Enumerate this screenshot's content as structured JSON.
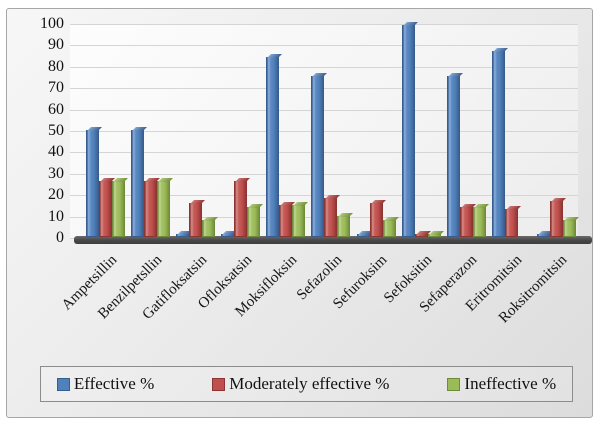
{
  "chart_data": {
    "type": "bar",
    "title": "",
    "xlabel": "",
    "ylabel": "",
    "categories": [
      "Ampetsillin",
      "Benzilpetsllin",
      "Gatifloksatsin",
      "Ofloksatsin",
      "Moksifloksin",
      "Sefazolin",
      "Sefuroksim",
      "Sefoksitin",
      "Sefaperazon",
      "Eritromitsin",
      "Roksitromitsin"
    ],
    "series": [
      {
        "name": "Effective %",
        "color": "#4f81bd",
        "border_color": "#365d8d",
        "cap_color": "#7fa6d6",
        "gradient": [
          "#3d6191",
          "#8aaedd",
          "#5d89c0",
          "#4f81bd",
          "#3d6191"
        ],
        "values": [
          50,
          50,
          1,
          1,
          84,
          75,
          1,
          99,
          75,
          87,
          1
        ]
      },
      {
        "name": "Moderately effective %",
        "color": "#c0504d",
        "border_color": "#8c3634",
        "cap_color": "#cc7a78",
        "gradient": [
          "#8e3836",
          "#d68d8b",
          "#c65b58",
          "#c0504d",
          "#943634"
        ],
        "values": [
          26,
          26,
          16,
          26,
          15,
          18,
          16,
          1,
          14,
          13,
          17
        ]
      },
      {
        "name": "Ineffective %",
        "color": "#9bbb59",
        "border_color": "#6d8b39",
        "cap_color": "#afc97e",
        "gradient": [
          "#71903c",
          "#c2d694",
          "#a3c167",
          "#9bbb59",
          "#76923c"
        ],
        "values": [
          26,
          26,
          8,
          14,
          15,
          10,
          8,
          1,
          14,
          0,
          8
        ]
      }
    ],
    "ylim": [
      0,
      100
    ],
    "ytick_step": 10,
    "yticks": [
      100,
      90,
      80,
      70,
      60,
      50,
      40,
      30,
      20,
      10,
      0
    ],
    "grid": true,
    "legend_position": "bottom",
    "wall_color": "#f4f4f4",
    "floor_color": "#474747",
    "background_color": "#ececec",
    "frame_border_color": "#a6a6a6"
  }
}
